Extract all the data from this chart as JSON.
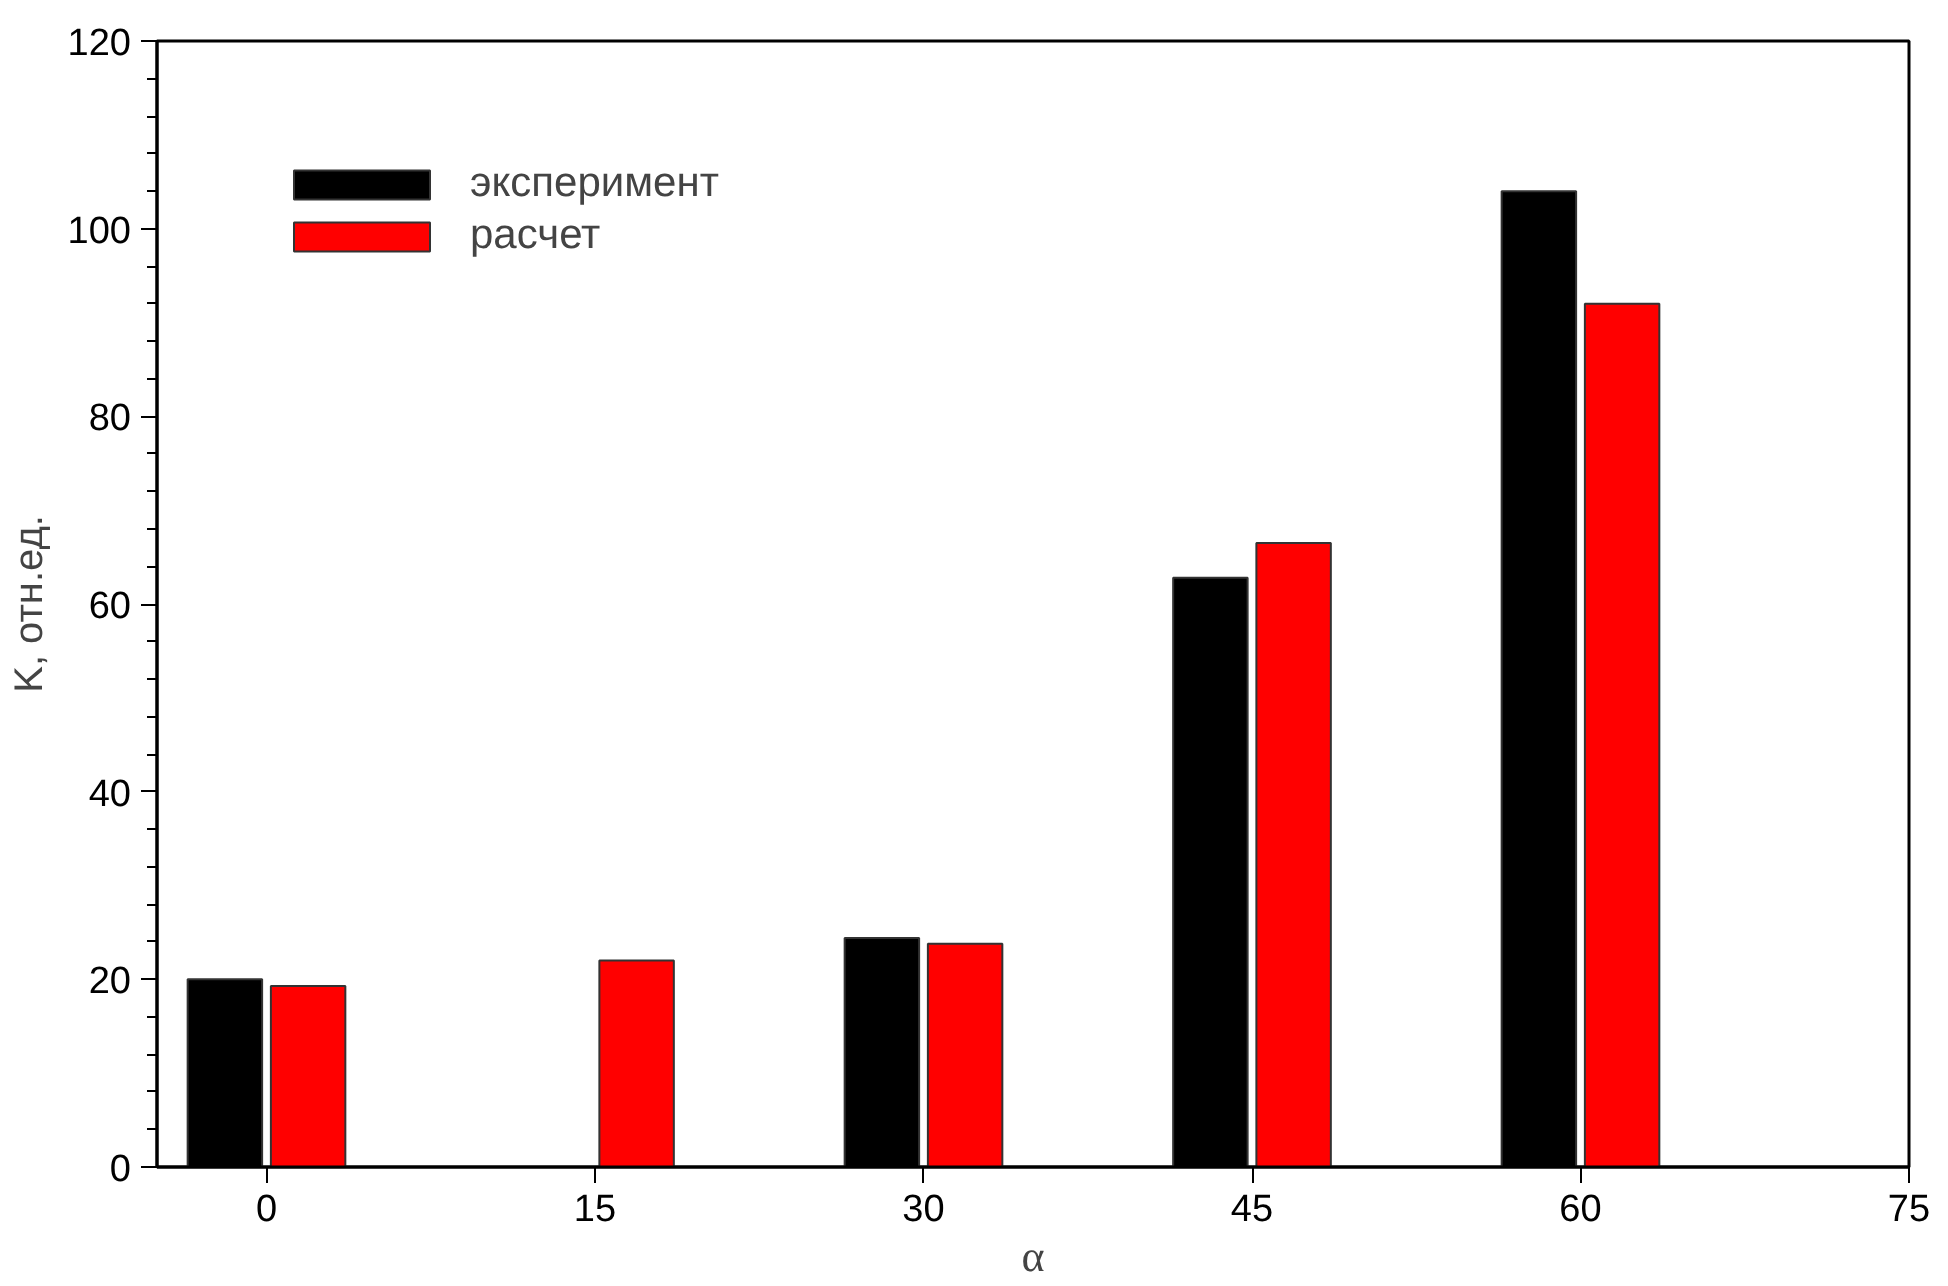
{
  "chart_data": {
    "type": "bar",
    "xlabel": "α",
    "ylabel": "K, отн.ед.",
    "xlim": [
      -5,
      75
    ],
    "xticks": [
      0,
      15,
      30,
      45,
      60,
      75
    ],
    "ylim": [
      0,
      120
    ],
    "yticks": [
      0,
      20,
      40,
      60,
      80,
      100,
      120
    ],
    "series": [
      {
        "name": "эксперимент",
        "color": "#000000",
        "x": [
          0,
          15,
          30,
          45,
          60
        ],
        "values": [
          20,
          null,
          24.4,
          62.8,
          104
        ]
      },
      {
        "name": "расчет",
        "color": "#ff0000",
        "x": [
          0,
          15,
          30,
          45,
          60
        ],
        "values": [
          19.3,
          22,
          23.8,
          66.5,
          92
        ]
      }
    ],
    "legend": "top left",
    "grid": false
  }
}
